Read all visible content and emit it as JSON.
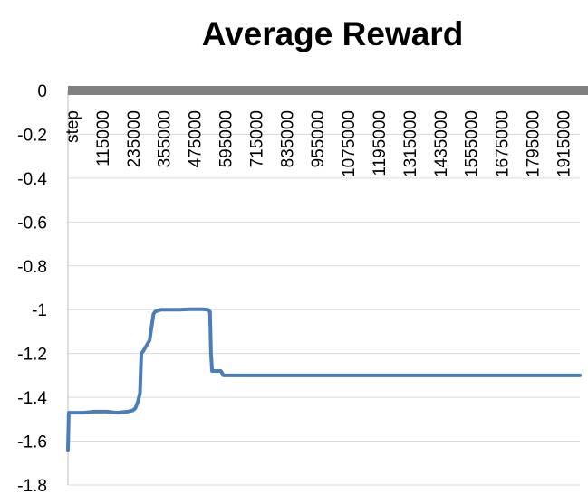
{
  "chart_data": {
    "type": "line",
    "title": "Average Reward",
    "xlabel": "",
    "ylabel": "",
    "ylim": [
      -1.8,
      0
    ],
    "y_ticks": [
      "0",
      "-0.2",
      "-0.4",
      "-0.6",
      "-0.8",
      "-1",
      "-1.2",
      "-1.4",
      "-1.6",
      "-1.8"
    ],
    "y_tick_values": [
      0,
      -0.2,
      -0.4,
      -0.6,
      -0.8,
      -1,
      -1.2,
      -1.4,
      -1.6,
      -1.8
    ],
    "x_ticks": [
      "step",
      "115000",
      "235000",
      "355000",
      "475000",
      "595000",
      "715000",
      "835000",
      "955000",
      "1075000",
      "1195000",
      "1315000",
      "1435000",
      "1555000",
      "1675000",
      "1795000",
      "1915000"
    ],
    "xlim": [
      0,
      1975000
    ],
    "grid": true,
    "legend": "none",
    "series_color": "#4a7ebb",
    "zero_line_color": "#808080",
    "series": [
      {
        "x": [
          0,
          3000,
          6000,
          10000,
          30000,
          60000,
          100000,
          150000,
          190000,
          230000,
          250000,
          260000,
          270000,
          278000,
          283000,
          290000,
          300000,
          315000,
          325000,
          330000,
          336000,
          345000,
          360000,
          390000,
          430000,
          470000,
          520000,
          540000,
          548000,
          552000,
          556000,
          565000,
          590000,
          600000,
          800000,
          1200000,
          1600000,
          1975000
        ],
        "y": [
          -1.64,
          -1.47,
          -1.47,
          -1.47,
          -1.47,
          -1.47,
          -1.465,
          -1.465,
          -1.47,
          -1.465,
          -1.46,
          -1.45,
          -1.42,
          -1.38,
          -1.2,
          -1.19,
          -1.17,
          -1.14,
          -1.06,
          -1.02,
          -1.01,
          -1.005,
          -1.0,
          -1.0,
          -1.0,
          -0.998,
          -0.998,
          -1.0,
          -1.01,
          -1.2,
          -1.28,
          -1.28,
          -1.28,
          -1.3,
          -1.3,
          -1.3,
          -1.3,
          -1.3
        ]
      }
    ]
  }
}
